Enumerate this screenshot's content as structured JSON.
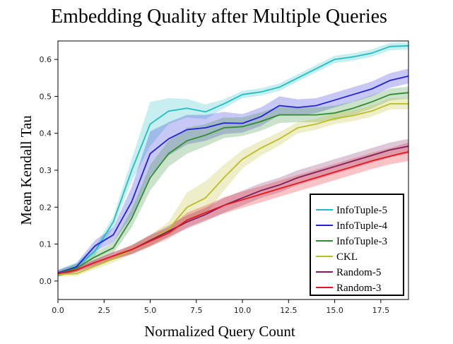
{
  "chart_data": {
    "type": "line",
    "title": "Embedding Quality after Multiple Queries",
    "xlabel": "Normalized Query Count",
    "ylabel": "Mean Kendall Tau",
    "xlim": [
      0,
      19
    ],
    "ylim": [
      -0.05,
      0.65
    ],
    "xticks": [
      0,
      2.5,
      5,
      7.5,
      10,
      12.5,
      15,
      17.5
    ],
    "xtick_labels": [
      "0.0",
      "2.5",
      "5.0",
      "7.5",
      "10.0",
      "12.5",
      "15.0",
      "17.5"
    ],
    "yticks": [
      0,
      0.1,
      0.2,
      0.3,
      0.4,
      0.5,
      0.6
    ],
    "ytick_labels": [
      "0.0",
      "0.1",
      "0.2",
      "0.3",
      "0.4",
      "0.5",
      "0.6"
    ],
    "grid": false,
    "legend_position": "lower-right",
    "x": [
      0,
      1,
      2,
      3,
      4,
      5,
      6,
      7,
      8,
      9,
      10,
      11,
      12,
      13,
      14,
      15,
      16,
      17,
      18,
      19
    ],
    "series": [
      {
        "name": "InfoTuple-5",
        "color": "#1fbfbf",
        "values": [
          0.02,
          0.04,
          0.08,
          0.16,
          0.3,
          0.425,
          0.46,
          0.468,
          0.458,
          0.48,
          0.505,
          0.512,
          0.525,
          0.55,
          0.575,
          0.6,
          0.607,
          0.617,
          0.635,
          0.637
        ],
        "band": [
          0.01,
          0.01,
          0.012,
          0.015,
          0.03,
          0.06,
          0.035,
          0.025,
          0.02,
          0.012,
          0.01,
          0.01,
          0.01,
          0.01,
          0.01,
          0.01,
          0.01,
          0.01,
          0.01,
          0.01
        ]
      },
      {
        "name": "InfoTuple-4",
        "color": "#2222dd",
        "values": [
          0.022,
          0.038,
          0.095,
          0.125,
          0.215,
          0.345,
          0.385,
          0.41,
          0.415,
          0.428,
          0.427,
          0.445,
          0.475,
          0.47,
          0.475,
          0.49,
          0.505,
          0.52,
          0.543,
          0.555
        ],
        "band": [
          0.008,
          0.01,
          0.015,
          0.02,
          0.04,
          0.06,
          0.045,
          0.04,
          0.035,
          0.03,
          0.025,
          0.025,
          0.025,
          0.022,
          0.02,
          0.02,
          0.02,
          0.02,
          0.02,
          0.02
        ]
      },
      {
        "name": "InfoTuple-3",
        "color": "#2e8b2e",
        "values": [
          0.02,
          0.035,
          0.065,
          0.09,
          0.17,
          0.28,
          0.345,
          0.38,
          0.395,
          0.415,
          0.418,
          0.432,
          0.45,
          0.45,
          0.45,
          0.455,
          0.468,
          0.485,
          0.505,
          0.51
        ],
        "band": [
          0.008,
          0.01,
          0.012,
          0.015,
          0.025,
          0.035,
          0.035,
          0.035,
          0.03,
          0.028,
          0.025,
          0.025,
          0.022,
          0.02,
          0.02,
          0.02,
          0.018,
          0.018,
          0.016,
          0.016
        ]
      },
      {
        "name": "CKL",
        "color": "#bcbd22",
        "values": [
          0.018,
          0.02,
          0.04,
          0.06,
          0.085,
          0.11,
          0.14,
          0.2,
          0.225,
          0.28,
          0.33,
          0.36,
          0.385,
          0.415,
          0.425,
          0.44,
          0.448,
          0.46,
          0.48,
          0.48
        ],
        "band": [
          0.005,
          0.006,
          0.008,
          0.01,
          0.012,
          0.015,
          0.02,
          0.04,
          0.045,
          0.035,
          0.025,
          0.02,
          0.018,
          0.015,
          0.015,
          0.015,
          0.015,
          0.015,
          0.015,
          0.015
        ]
      },
      {
        "name": "Random-5",
        "color": "#7b1f5e",
        "values": [
          0.02,
          0.03,
          0.05,
          0.068,
          0.085,
          0.11,
          0.135,
          0.16,
          0.18,
          0.205,
          0.225,
          0.245,
          0.26,
          0.28,
          0.295,
          0.31,
          0.325,
          0.34,
          0.355,
          0.365
        ],
        "band": [
          0.005,
          0.006,
          0.008,
          0.01,
          0.012,
          0.015,
          0.015,
          0.018,
          0.018,
          0.02,
          0.02,
          0.02,
          0.02,
          0.02,
          0.02,
          0.02,
          0.02,
          0.02,
          0.02,
          0.02
        ]
      },
      {
        "name": "Random-3",
        "color": "#e8151d",
        "values": [
          0.02,
          0.03,
          0.05,
          0.068,
          0.085,
          0.108,
          0.13,
          0.165,
          0.185,
          0.205,
          0.22,
          0.235,
          0.25,
          0.265,
          0.28,
          0.295,
          0.31,
          0.325,
          0.338,
          0.35
        ],
        "band": [
          0.005,
          0.006,
          0.008,
          0.01,
          0.012,
          0.015,
          0.015,
          0.02,
          0.02,
          0.022,
          0.022,
          0.022,
          0.022,
          0.022,
          0.022,
          0.022,
          0.022,
          0.022,
          0.022,
          0.025
        ]
      }
    ]
  }
}
